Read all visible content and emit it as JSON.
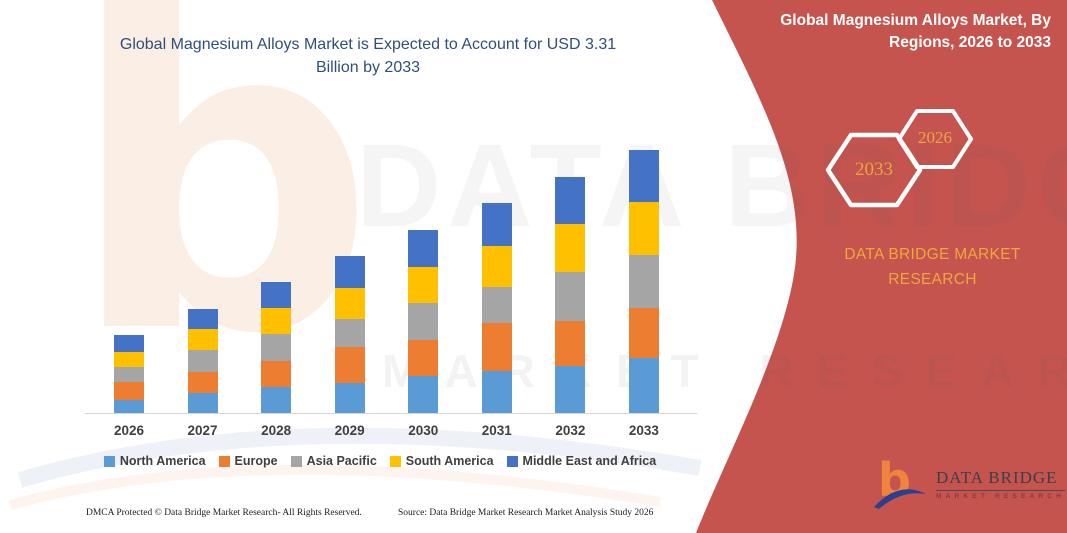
{
  "header": {
    "left_title": "Global Magnesium Alloys Market is Expected to Account for USD 3.31 Billion by 2033",
    "right_title": "Global Magnesium Alloys Market, By Regions, 2026 to 2033"
  },
  "badges": {
    "end_year": "2033",
    "start_year": "2026"
  },
  "brand": {
    "panel_text": "DATA BRIDGE MARKET RESEARCH",
    "logo_title": "DATA BRIDGE",
    "logo_subtitle": "MARKET RESEARCH",
    "logo_letter": "b"
  },
  "watermark": {
    "row1": "DATA BRIDGE",
    "row2": "MARKET RESEARCH",
    "letter_b": "b"
  },
  "footer": {
    "dmca": "DMCA Protected © Data Bridge Market Research-  All Rights Reserved.",
    "source": "Source: Data Bridge Market Research  Market Analysis Study 2026"
  },
  "colors": {
    "panel_red": "#c5544e",
    "title_blue": "#2f4e7d",
    "gold_text": "#eaa53d",
    "axis_line": "#d6d6d6",
    "logo_orange": "#f0833d",
    "logo_blue": "#2b3f8f"
  },
  "chart_data": {
    "type": "bar",
    "stacked": true,
    "title": "Global Magnesium Alloys Market, By Regions, 2026 to 2033",
    "unit": "USD Billion",
    "xlabel": "",
    "ylabel": "",
    "grid": false,
    "legend_position": "bottom",
    "ylim": [
      0,
      3.4
    ],
    "categories": [
      "2026",
      "2027",
      "2028",
      "2029",
      "2030",
      "2031",
      "2032",
      "2033"
    ],
    "totals": [
      0.98,
      1.31,
      1.65,
      1.98,
      2.31,
      2.64,
      2.98,
      3.31
    ],
    "highlight_total_2033": "3.31",
    "series": [
      {
        "key": "north-america",
        "name": "North America",
        "color": "#5B9BD5",
        "values": [
          0.17,
          0.25,
          0.33,
          0.38,
          0.47,
          0.53,
          0.59,
          0.69
        ]
      },
      {
        "key": "europe",
        "name": "Europe",
        "color": "#ED7D31",
        "values": [
          0.22,
          0.27,
          0.32,
          0.45,
          0.45,
          0.6,
          0.57,
          0.63
        ]
      },
      {
        "key": "asia-pacific",
        "name": "Asia Pacific",
        "color": "#A5A5A5",
        "values": [
          0.19,
          0.28,
          0.34,
          0.35,
          0.47,
          0.46,
          0.62,
          0.67
        ]
      },
      {
        "key": "south-america",
        "name": "South America",
        "color": "#FFC000",
        "values": [
          0.19,
          0.26,
          0.33,
          0.39,
          0.45,
          0.51,
          0.6,
          0.67
        ]
      },
      {
        "key": "middle-east-africa",
        "name": "Middle East and Africa",
        "color": "#4472C4",
        "values": [
          0.21,
          0.25,
          0.33,
          0.41,
          0.47,
          0.54,
          0.6,
          0.65
        ]
      }
    ]
  }
}
